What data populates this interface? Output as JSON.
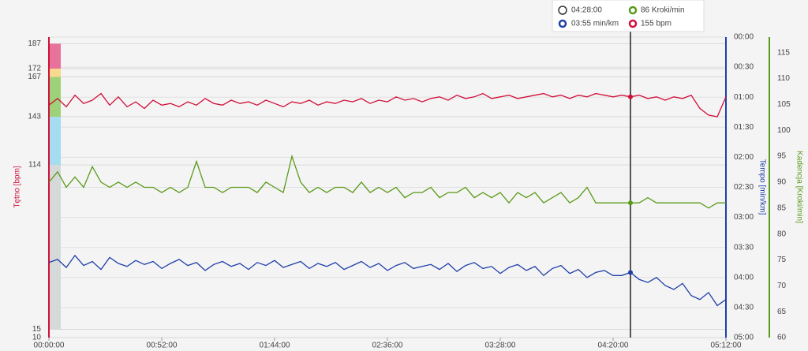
{
  "chart_data": {
    "type": "line",
    "x": [
      0,
      4,
      8,
      12,
      16,
      20,
      24,
      28,
      32,
      36,
      40,
      44,
      48,
      52,
      56,
      60,
      64,
      68,
      72,
      76,
      80,
      84,
      88,
      92,
      96,
      100,
      104,
      108,
      112,
      116,
      120,
      124,
      128,
      132,
      136,
      140,
      144,
      148,
      152,
      156,
      160,
      164,
      168,
      172,
      176,
      180,
      184,
      188,
      192,
      196,
      200,
      204,
      208,
      212,
      216,
      220,
      224,
      228,
      232,
      236,
      240,
      244,
      248,
      252,
      256,
      260,
      264,
      268,
      272,
      276,
      280,
      284,
      288,
      292,
      296,
      300,
      304,
      308,
      312
    ],
    "xlim": [
      0,
      312
    ],
    "xticks": [
      {
        "value": 0,
        "label": "00:00:00"
      },
      {
        "value": 52,
        "label": "00:52:00"
      },
      {
        "value": 104,
        "label": "01:44:00"
      },
      {
        "value": 156,
        "label": "02:36:00"
      },
      {
        "value": 208,
        "label": "03:28:00"
      },
      {
        "value": 260,
        "label": "04:20:00"
      },
      {
        "value": 312,
        "label": "05:12:00"
      }
    ],
    "y_label": "Tętno [bpm]",
    "ylim": [
      10,
      191
    ],
    "yticks": [
      10,
      15,
      114,
      143,
      167,
      172,
      187
    ],
    "y2_label": "Tempo [min/km]",
    "y2lim": [
      300,
      0
    ],
    "y2ticks": [
      {
        "value": 0,
        "label": "00:00"
      },
      {
        "value": 30,
        "label": "00:30"
      },
      {
        "value": 60,
        "label": "01:00"
      },
      {
        "value": 90,
        "label": "01:30"
      },
      {
        "value": 120,
        "label": "02:00"
      },
      {
        "value": 150,
        "label": "02:30"
      },
      {
        "value": 180,
        "label": "03:00"
      },
      {
        "value": 210,
        "label": "03:30"
      },
      {
        "value": 240,
        "label": "04:00"
      },
      {
        "value": 270,
        "label": "04:30"
      },
      {
        "value": 300,
        "label": "05:00"
      }
    ],
    "y3_label": "Kadencja [Kroki/min]",
    "y3lim": [
      60,
      118
    ],
    "y3ticks": [
      60,
      65,
      70,
      75,
      80,
      85,
      90,
      95,
      100,
      105,
      110,
      115
    ],
    "grid": true,
    "zones": [
      {
        "from": 172,
        "to": 187,
        "color": "#e8739a"
      },
      {
        "from": 167,
        "to": 172,
        "color": "#f7d98f"
      },
      {
        "from": 143,
        "to": 167,
        "color": "#9ed27a"
      },
      {
        "from": 114,
        "to": 143,
        "color": "#a5dcf0"
      },
      {
        "from": 15,
        "to": 114,
        "color": "#d5d9da"
      }
    ],
    "series": [
      {
        "axis": "y",
        "color": "#d0103a",
        "values": [
          150,
          154,
          149,
          156,
          151,
          153,
          157,
          150,
          155,
          149,
          152,
          148,
          153,
          150,
          151,
          149,
          152,
          150,
          154,
          151,
          150,
          153,
          151,
          152,
          150,
          153,
          151,
          149,
          152,
          151,
          153,
          150,
          152,
          151,
          153,
          152,
          154,
          151,
          153,
          152,
          155,
          153,
          154,
          152,
          154,
          155,
          153,
          156,
          154,
          155,
          157,
          154,
          155,
          156,
          154,
          155,
          156,
          157,
          155,
          156,
          154,
          156,
          155,
          157,
          156,
          155,
          156,
          155,
          156,
          154,
          155,
          153,
          155,
          154,
          156,
          148,
          144,
          143,
          155
        ]
      },
      {
        "axis": "y3",
        "color": "#5a9a1a",
        "values": [
          90,
          92,
          89,
          91,
          89,
          93,
          90,
          89,
          90,
          89,
          90,
          89,
          89,
          88,
          89,
          88,
          89,
          94,
          89,
          89,
          88,
          89,
          89,
          89,
          88,
          90,
          89,
          88,
          95,
          90,
          88,
          89,
          88,
          89,
          89,
          88,
          90,
          88,
          89,
          88,
          89,
          87,
          88,
          88,
          89,
          87,
          88,
          88,
          89,
          87,
          88,
          87,
          88,
          86,
          88,
          87,
          88,
          86,
          87,
          88,
          86,
          87,
          89,
          86,
          86,
          86,
          86,
          86,
          86,
          87,
          86,
          86,
          86,
          86,
          86,
          86,
          85,
          86,
          86
        ]
      },
      {
        "axis": "y2",
        "color": "#1f3fa8",
        "values": [
          225,
          222,
          230,
          218,
          228,
          224,
          232,
          220,
          226,
          229,
          223,
          227,
          224,
          231,
          226,
          222,
          228,
          225,
          233,
          227,
          224,
          229,
          226,
          232,
          225,
          228,
          223,
          230,
          227,
          224,
          231,
          226,
          229,
          225,
          232,
          228,
          224,
          230,
          226,
          233,
          228,
          225,
          231,
          229,
          227,
          232,
          226,
          234,
          228,
          225,
          231,
          229,
          236,
          230,
          227,
          233,
          229,
          238,
          231,
          228,
          236,
          232,
          240,
          235,
          233,
          238,
          238,
          235,
          242,
          245,
          240,
          248,
          252,
          246,
          258,
          262,
          255,
          268,
          262
        ]
      }
    ],
    "cursor_x": 268,
    "tooltip": {
      "time": "04:28:00",
      "cadence": "86 Kroki/min",
      "pace": "03:55 min/km",
      "hr": "155 bpm"
    }
  }
}
